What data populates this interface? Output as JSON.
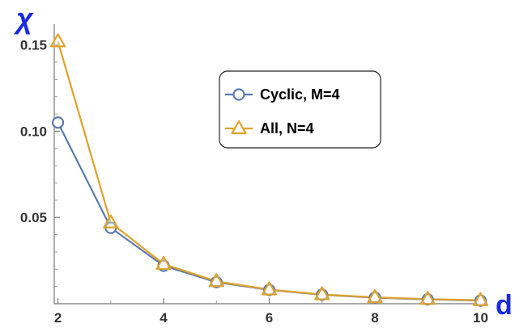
{
  "chart_data": {
    "type": "line",
    "ylabel": "χ",
    "xlabel": "d",
    "x": [
      2,
      3,
      4,
      5,
      6,
      7,
      8,
      9,
      10
    ],
    "series": [
      {
        "name": "Cyclic, M=4",
        "marker": "circle",
        "color": "#5b7bae",
        "values": [
          0.105,
          0.044,
          0.022,
          0.0125,
          0.008,
          0.0052,
          0.0035,
          0.0025,
          0.0018
        ]
      },
      {
        "name": "All, N=4",
        "marker": "triangle",
        "color": "#e0a22a",
        "values": [
          0.152,
          0.047,
          0.023,
          0.013,
          0.0082,
          0.0054,
          0.0037,
          0.0027,
          0.002
        ]
      }
    ],
    "xlim": [
      1.93,
      10.1
    ],
    "ylim": [
      0,
      0.162
    ],
    "xticks": [
      "2",
      "4",
      "6",
      "8",
      "10"
    ],
    "xtick_values": [
      2,
      4,
      6,
      8,
      10
    ],
    "yticks": [
      "0.05",
      "0.10",
      "0.15"
    ],
    "ytick_values": [
      0.05,
      0.1,
      0.15
    ],
    "grid": false,
    "legend_position": "upper-right"
  }
}
